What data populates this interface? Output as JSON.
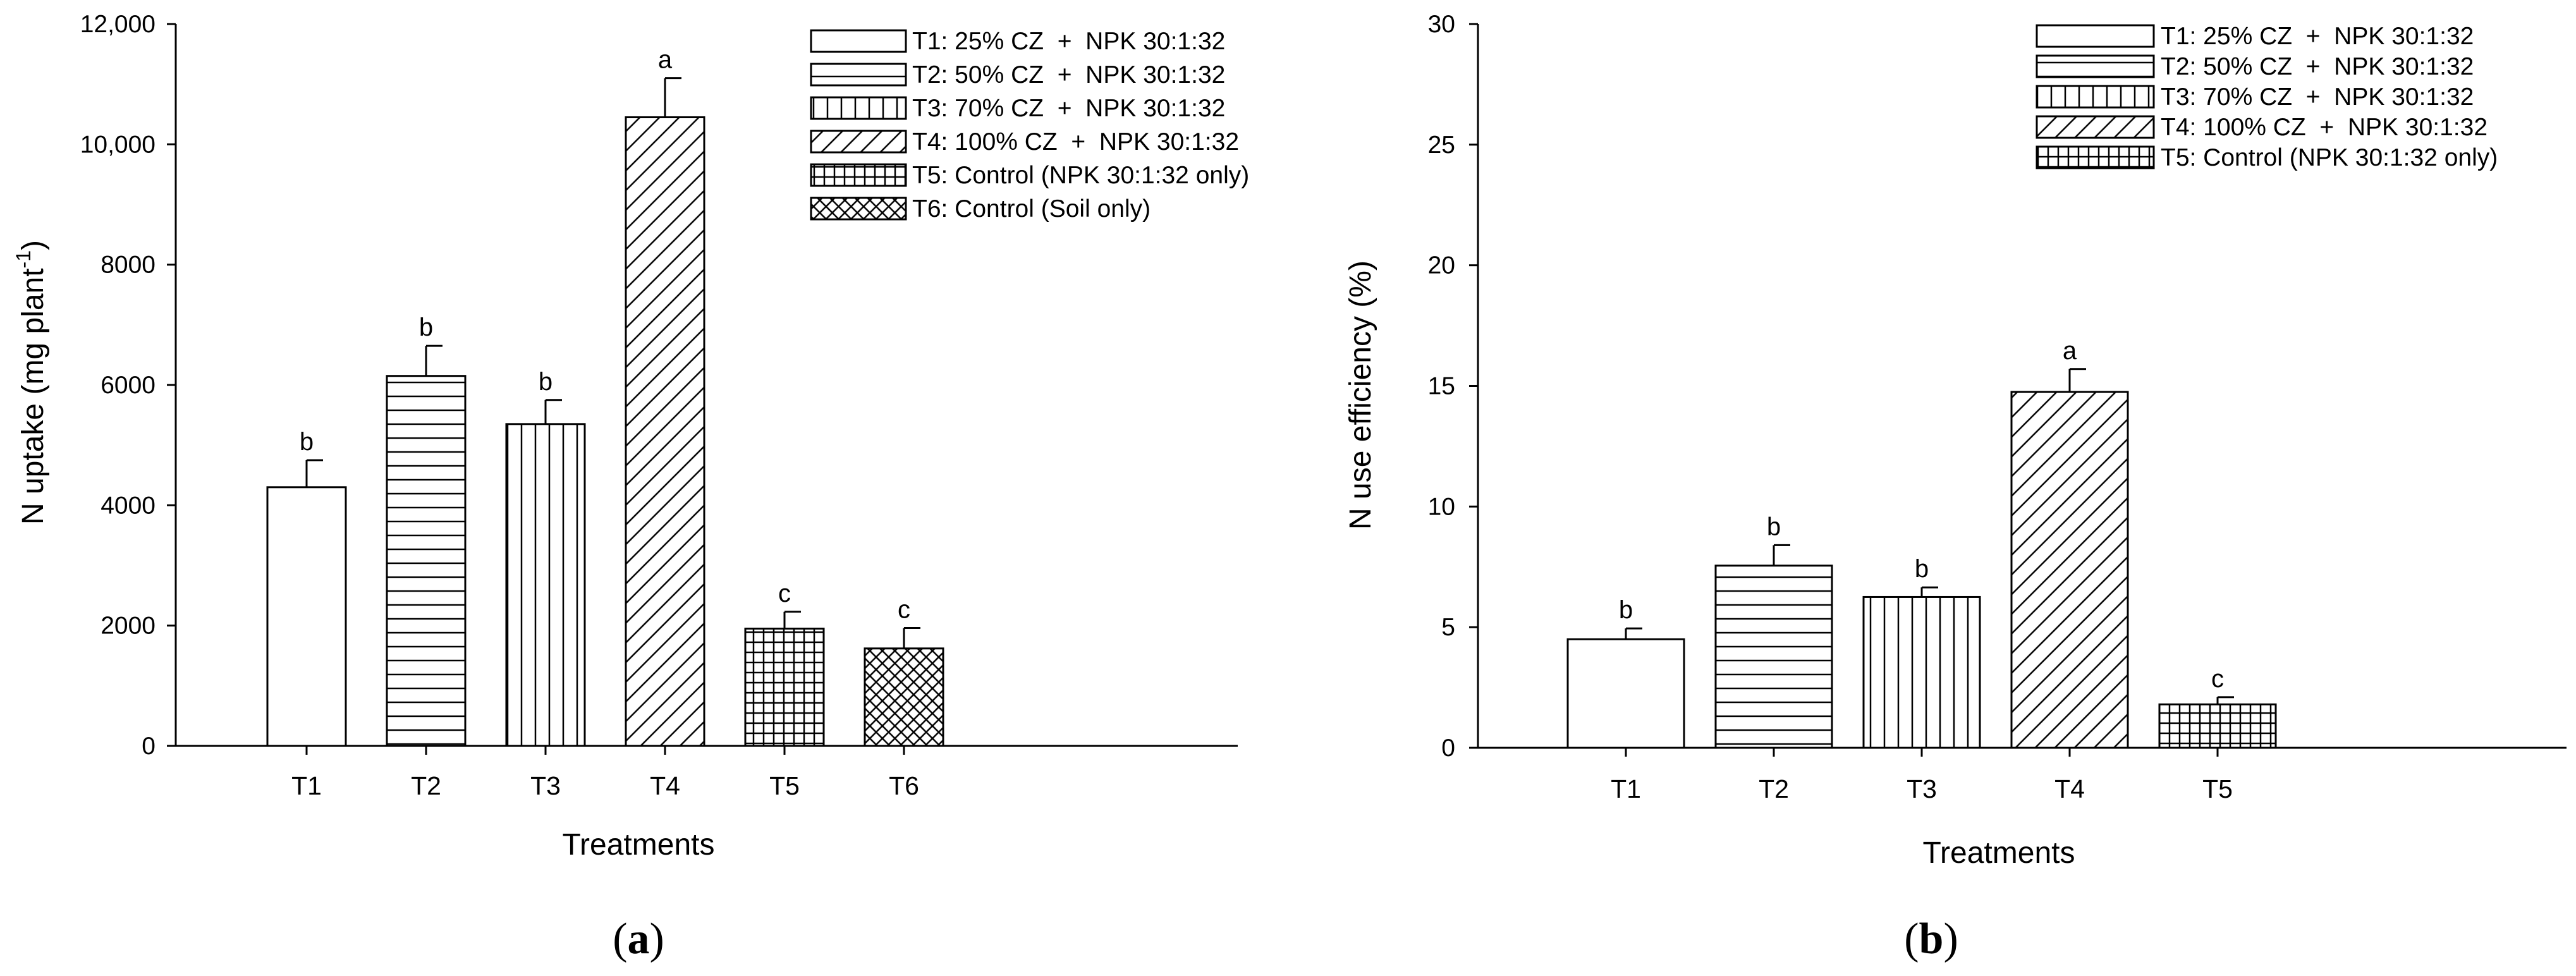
{
  "chart_data": [
    {
      "type": "bar",
      "panel_label": "a",
      "title": "",
      "xlabel": "Treatments",
      "ylabel": "N uptake (mg plant",
      "ylabel_superscript": "-1",
      "ylabel_close": ")",
      "ylim": [
        0,
        12000
      ],
      "yticks": [
        0,
        2000,
        4000,
        6000,
        8000,
        10000,
        12000
      ],
      "ytick_labels": [
        "0",
        "2000",
        "4000",
        "6000",
        "8000",
        "10,000",
        "12,000"
      ],
      "categories": [
        "T1",
        "T2",
        "T3",
        "T4",
        "T5",
        "T6"
      ],
      "values": [
        4300,
        6150,
        5350,
        10450,
        1950,
        1620
      ],
      "errors": [
        450,
        500,
        400,
        650,
        280,
        340
      ],
      "significance": [
        "b",
        "b",
        "b",
        "a",
        "c",
        "c"
      ],
      "patterns": [
        "none",
        "horizontal",
        "vertical",
        "diagonal",
        "grid",
        "crosshatch"
      ],
      "legend": [
        "T1: 25% CZ  +  NPK 30:1:32",
        "T2: 50% CZ  +  NPK 30:1:32",
        "T3: 70% CZ  +  NPK 30:1:32",
        "T4: 100% CZ  +  NPK 30:1:32",
        "T5: Control (NPK 30:1:32 only)",
        "T6: Control (Soil only)"
      ],
      "legend_position": "top-right"
    },
    {
      "type": "bar",
      "panel_label": "b",
      "title": "",
      "xlabel": "Treatments",
      "ylabel": "N use efficiency (%)",
      "ylim": [
        0,
        30
      ],
      "yticks": [
        0,
        5,
        10,
        15,
        20,
        25,
        30
      ],
      "ytick_labels": [
        "0",
        "5",
        "10",
        "15",
        "20",
        "25",
        "30"
      ],
      "categories": [
        "T1",
        "T2",
        "T3",
        "T4",
        "T5"
      ],
      "values": [
        4.5,
        7.55,
        6.25,
        14.75,
        1.8
      ],
      "errors": [
        0.45,
        0.85,
        0.4,
        0.95,
        0.3
      ],
      "significance": [
        "b",
        "b",
        "b",
        "a",
        "c"
      ],
      "patterns": [
        "none",
        "horizontal",
        "vertical",
        "diagonal",
        "grid"
      ],
      "legend": [
        "T1: 25% CZ  +  NPK 30:1:32",
        "T2: 50% CZ  +  NPK 30:1:32",
        "T3: 70% CZ  +  NPK 30:1:32",
        "T4: 100% CZ  +  NPK 30:1:32",
        "T5: Control (NPK 30:1:32 only)"
      ],
      "legend_position": "top-right"
    }
  ]
}
